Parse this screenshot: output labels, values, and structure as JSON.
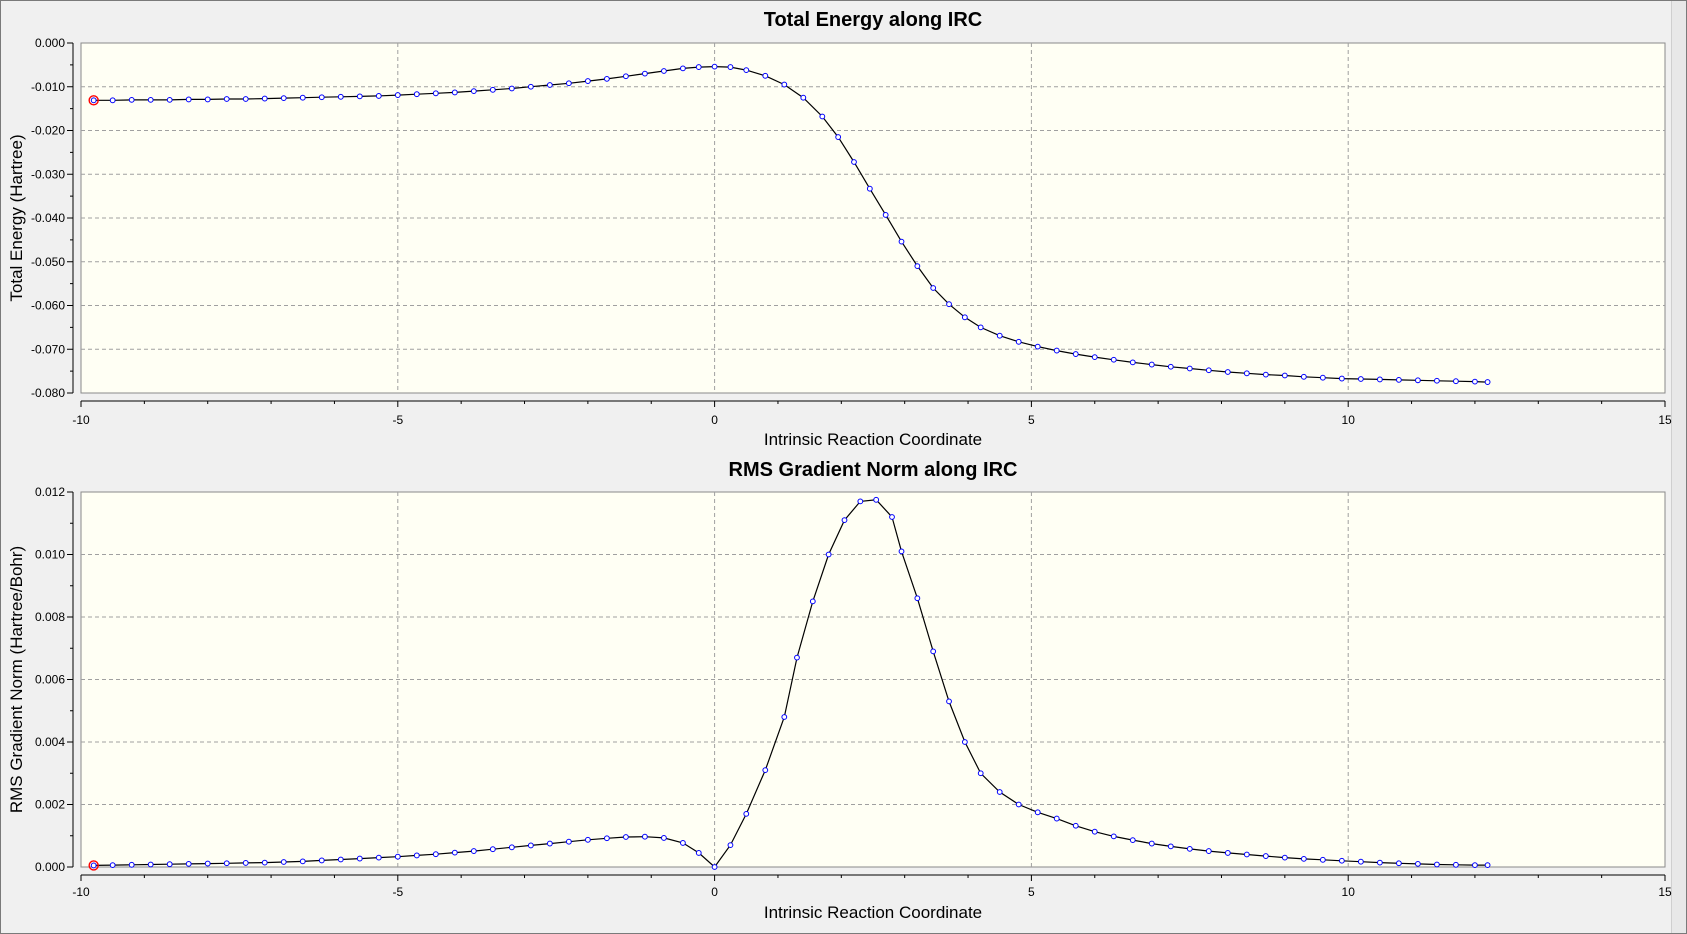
{
  "chart_data": [
    {
      "type": "line",
      "title": "Total Energy along IRC",
      "xlabel": "Intrinsic Reaction Coordinate",
      "ylabel": "Total Energy (Hartree)",
      "xlim": [
        -10,
        15
      ],
      "ylim": [
        -0.08,
        0.0
      ],
      "xticks": [
        -10,
        -5,
        0,
        5,
        10,
        15
      ],
      "xtick_labels": [
        "-10",
        "-5",
        "0",
        "5",
        "10",
        "15"
      ],
      "yticks": [
        0.0,
        -0.01,
        -0.02,
        -0.03,
        -0.04,
        -0.05,
        -0.06,
        -0.07,
        -0.08
      ],
      "ytick_labels": [
        "0.000",
        "-0.010",
        "-0.020",
        "-0.030",
        "-0.040",
        "-0.050",
        "-0.060",
        "-0.070",
        "-0.080"
      ],
      "grid": true,
      "highlight_index": 0,
      "series": [
        {
          "x": [
            -9.8,
            -9.5,
            -9.2,
            -8.9,
            -8.6,
            -8.3,
            -8.0,
            -7.7,
            -7.4,
            -7.1,
            -6.8,
            -6.5,
            -6.2,
            -5.9,
            -5.6,
            -5.3,
            -5.0,
            -4.7,
            -4.4,
            -4.1,
            -3.8,
            -3.5,
            -3.2,
            -2.9,
            -2.6,
            -2.3,
            -2.0,
            -1.7,
            -1.4,
            -1.1,
            -0.8,
            -0.5,
            -0.25,
            0.0,
            0.25,
            0.5,
            0.8,
            1.1,
            1.4,
            1.7,
            1.95,
            2.2,
            2.45,
            2.7,
            2.95,
            3.2,
            3.45,
            3.7,
            3.95,
            4.2,
            4.5,
            4.8,
            5.1,
            5.4,
            5.7,
            6.0,
            6.3,
            6.6,
            6.9,
            7.2,
            7.5,
            7.8,
            8.1,
            8.4,
            8.7,
            9.0,
            9.3,
            9.6,
            9.9,
            10.2,
            10.5,
            10.8,
            11.1,
            11.4,
            11.7,
            12.0,
            12.2
          ],
          "y": [
            -0.0131,
            -0.0131,
            -0.013,
            -0.013,
            -0.013,
            -0.0129,
            -0.0129,
            -0.0128,
            -0.0128,
            -0.0127,
            -0.0126,
            -0.0125,
            -0.0124,
            -0.0123,
            -0.0122,
            -0.0121,
            -0.0119,
            -0.0117,
            -0.0115,
            -0.0113,
            -0.011,
            -0.0107,
            -0.0104,
            -0.01,
            -0.0096,
            -0.0092,
            -0.0087,
            -0.0082,
            -0.0076,
            -0.007,
            -0.0064,
            -0.0058,
            -0.0055,
            -0.0054,
            -0.0055,
            -0.0062,
            -0.0075,
            -0.0095,
            -0.0125,
            -0.0168,
            -0.0215,
            -0.0272,
            -0.0333,
            -0.0393,
            -0.0454,
            -0.051,
            -0.056,
            -0.0597,
            -0.0627,
            -0.065,
            -0.0669,
            -0.0683,
            -0.0694,
            -0.0703,
            -0.0711,
            -0.0718,
            -0.0724,
            -0.073,
            -0.0735,
            -0.074,
            -0.0744,
            -0.0748,
            -0.0752,
            -0.0755,
            -0.0758,
            -0.076,
            -0.0763,
            -0.0765,
            -0.0767,
            -0.0768,
            -0.0769,
            -0.077,
            -0.0771,
            -0.0772,
            -0.0773,
            -0.0774,
            -0.0775
          ]
        }
      ]
    },
    {
      "type": "line",
      "title": "RMS Gradient Norm along IRC",
      "xlabel": "Intrinsic Reaction Coordinate",
      "ylabel": "RMS Gradient Norm (Hartree/Bohr)",
      "xlim": [
        -10,
        15
      ],
      "ylim": [
        0.0,
        0.012
      ],
      "xticks": [
        -10,
        -5,
        0,
        5,
        10,
        15
      ],
      "xtick_labels": [
        "-10",
        "-5",
        "0",
        "5",
        "10",
        "15"
      ],
      "yticks": [
        0.012,
        0.01,
        0.008,
        0.006,
        0.004,
        0.002,
        0.0
      ],
      "ytick_labels": [
        "0.012",
        "0.010",
        "0.008",
        "0.006",
        "0.004",
        "0.002",
        "0.000"
      ],
      "grid": true,
      "highlight_index": 0,
      "series": [
        {
          "x": [
            -9.8,
            -9.5,
            -9.2,
            -8.9,
            -8.6,
            -8.3,
            -8.0,
            -7.7,
            -7.4,
            -7.1,
            -6.8,
            -6.5,
            -6.2,
            -5.9,
            -5.6,
            -5.3,
            -5.0,
            -4.7,
            -4.4,
            -4.1,
            -3.8,
            -3.5,
            -3.2,
            -2.9,
            -2.6,
            -2.3,
            -2.0,
            -1.7,
            -1.4,
            -1.1,
            -0.8,
            -0.5,
            -0.25,
            0.0,
            0.25,
            0.5,
            0.8,
            1.1,
            1.3,
            1.55,
            1.8,
            2.05,
            2.3,
            2.55,
            2.8,
            2.95,
            3.2,
            3.45,
            3.7,
            3.95,
            4.2,
            4.5,
            4.8,
            5.1,
            5.4,
            5.7,
            6.0,
            6.3,
            6.6,
            6.9,
            7.2,
            7.5,
            7.8,
            8.1,
            8.4,
            8.7,
            9.0,
            9.3,
            9.6,
            9.9,
            10.2,
            10.5,
            10.8,
            11.1,
            11.4,
            11.7,
            12.0,
            12.2
          ],
          "y": [
            5e-05,
            6e-05,
            7e-05,
            8e-05,
            9e-05,
            0.0001,
            0.00011,
            0.00012,
            0.00013,
            0.00014,
            0.00016,
            0.00018,
            0.00021,
            0.00024,
            0.00027,
            0.0003,
            0.00033,
            0.00037,
            0.00041,
            0.00046,
            0.00051,
            0.00057,
            0.00063,
            0.00069,
            0.00075,
            0.00081,
            0.00087,
            0.00092,
            0.00096,
            0.00097,
            0.00093,
            0.00077,
            0.00045,
            0.0,
            0.0007,
            0.0017,
            0.0031,
            0.0048,
            0.0067,
            0.0085,
            0.01,
            0.0111,
            0.0117,
            0.01175,
            0.0112,
            0.0101,
            0.0086,
            0.0069,
            0.0053,
            0.004,
            0.003,
            0.0024,
            0.002,
            0.00175,
            0.00155,
            0.00132,
            0.00113,
            0.00098,
            0.00086,
            0.00075,
            0.00066,
            0.00058,
            0.00051,
            0.00045,
            0.0004,
            0.00035,
            0.0003,
            0.00026,
            0.00023,
            0.0002,
            0.00017,
            0.00014,
            0.00012,
            0.0001,
            8e-05,
            7e-05,
            6e-05,
            6e-05
          ]
        }
      ]
    }
  ],
  "colors": {
    "plot_background": "#fffff4",
    "line": "#000000",
    "marker": "#0000ff",
    "highlight_marker": "#ff0000",
    "grid": "#a0a0a0"
  }
}
